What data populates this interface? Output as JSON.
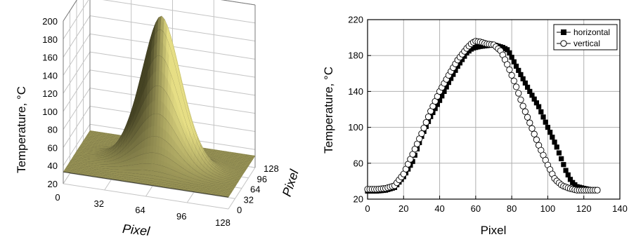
{
  "chart_data": [
    {
      "type": "surface",
      "xlabel": "Pixel",
      "ylabel": "Pixel",
      "zlabel": "Temperature, °C",
      "x_ticks": [
        "0",
        "32",
        "64",
        "96",
        "128"
      ],
      "y_ticks": [
        "0",
        "32",
        "64",
        "96",
        "128"
      ],
      "z_ticks": [
        "20",
        "40",
        "60",
        "80",
        "100",
        "120",
        "140",
        "160",
        "180",
        "200"
      ],
      "xlim": [
        0,
        128
      ],
      "ylim": [
        0,
        128
      ],
      "zlim": [
        20,
        200
      ],
      "baseline_temp": 33,
      "peak_temp": 198,
      "peak_x": 66,
      "peak_y": 62,
      "surface_color": "#efe78a",
      "contour_color": "#2a2a22",
      "grid": true
    },
    {
      "type": "scatter",
      "xlabel": "Pixel",
      "ylabel": "Temperature, °C",
      "x_ticks": [
        "0",
        "20",
        "40",
        "60",
        "80",
        "100",
        "120",
        "140"
      ],
      "y_ticks": [
        "20",
        "60",
        "100",
        "140",
        "180",
        "220"
      ],
      "xlim": [
        0,
        140
      ],
      "ylim": [
        20,
        220
      ],
      "grid": true,
      "legend_position": "top-right",
      "series": [
        {
          "name": "horizontal",
          "marker": "filled-square",
          "color": "#000000",
          "points": [
            [
              0,
              29
            ],
            [
              5,
              29
            ],
            [
              10,
              30
            ],
            [
              15,
              33
            ],
            [
              20,
              45
            ],
            [
              25,
              62
            ],
            [
              30,
              90
            ],
            [
              35,
              112
            ],
            [
              40,
              130
            ],
            [
              45,
              150
            ],
            [
              50,
              168
            ],
            [
              55,
              183
            ],
            [
              58,
              188
            ],
            [
              62,
              190
            ],
            [
              66,
              191
            ],
            [
              70,
              192
            ],
            [
              75,
              189
            ],
            [
              78,
              186
            ],
            [
              82,
              170
            ],
            [
              86,
              155
            ],
            [
              90,
              140
            ],
            [
              95,
              123
            ],
            [
              100,
              100
            ],
            [
              105,
              78
            ],
            [
              110,
              52
            ],
            [
              113,
              40
            ],
            [
              116,
              34
            ],
            [
              120,
              32
            ],
            [
              125,
              30
            ],
            [
              128,
              30
            ]
          ]
        },
        {
          "name": "vertical",
          "marker": "open-circle",
          "color": "#000000",
          "points": [
            [
              0,
              31
            ],
            [
              5,
              31
            ],
            [
              10,
              32
            ],
            [
              15,
              35
            ],
            [
              20,
              48
            ],
            [
              25,
              70
            ],
            [
              30,
              93
            ],
            [
              35,
              118
            ],
            [
              40,
              140
            ],
            [
              45,
              158
            ],
            [
              50,
              175
            ],
            [
              55,
              188
            ],
            [
              58,
              194
            ],
            [
              60,
              196
            ],
            [
              63,
              195
            ],
            [
              66,
              193
            ],
            [
              70,
              192
            ],
            [
              74,
              185
            ],
            [
              78,
              168
            ],
            [
              82,
              148
            ],
            [
              86,
              125
            ],
            [
              90,
              105
            ],
            [
              95,
              80
            ],
            [
              100,
              58
            ],
            [
              104,
              42
            ],
            [
              108,
              35
            ],
            [
              112,
              32
            ],
            [
              116,
              30
            ],
            [
              120,
              30
            ],
            [
              125,
              30
            ],
            [
              128,
              30
            ]
          ]
        }
      ]
    }
  ]
}
